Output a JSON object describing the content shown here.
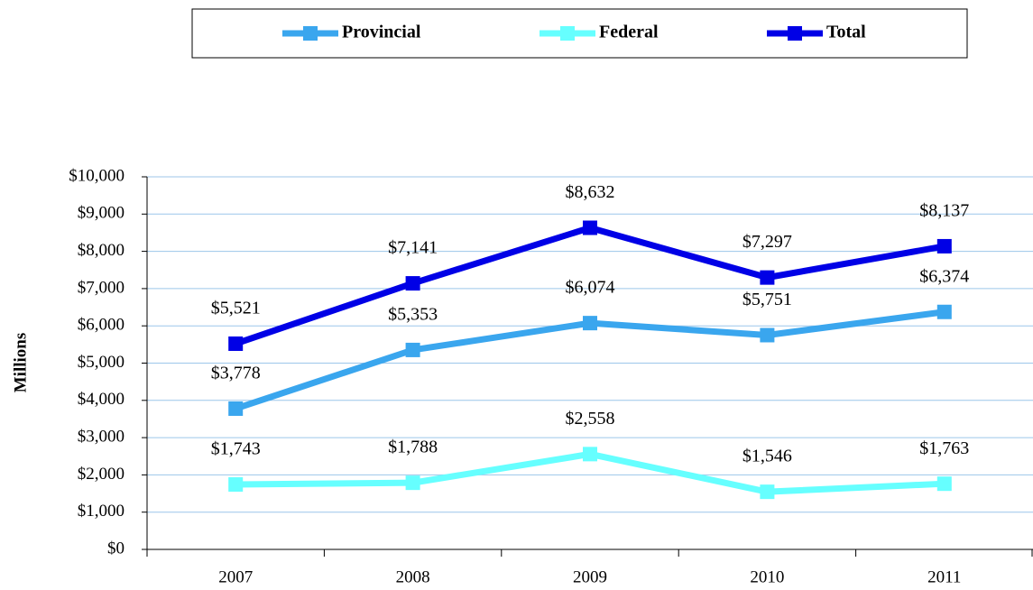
{
  "chart_data": {
    "type": "line",
    "y_label": "Millions",
    "categories": [
      "2007",
      "2008",
      "2009",
      "2010",
      "2011"
    ],
    "series": [
      {
        "name": "Provincial",
        "color": "#3aa6ee",
        "values": [
          3778,
          5353,
          6074,
          5751,
          6374
        ],
        "value_labels": [
          "$3,778",
          "$5,353",
          "$6,074",
          "$5,751",
          "$6,374"
        ]
      },
      {
        "name": "Federal",
        "color": "#66ffff",
        "values": [
          1743,
          1788,
          2558,
          1546,
          1763
        ],
        "value_labels": [
          "$1,743",
          "$1,788",
          "$2,558",
          "$1,546",
          "$1,763"
        ]
      },
      {
        "name": "Total",
        "color": "#0000e6",
        "values": [
          5521,
          7141,
          8632,
          7297,
          8137
        ],
        "value_labels": [
          "$5,521",
          "$7,141",
          "$8,632",
          "$7,297",
          "$8,137"
        ]
      }
    ],
    "ylim": [
      0,
      10000
    ],
    "yticks": [
      {
        "value": 0,
        "label": "$0"
      },
      {
        "value": 1000,
        "label": "$1,000"
      },
      {
        "value": 2000,
        "label": "$2,000"
      },
      {
        "value": 3000,
        "label": "$3,000"
      },
      {
        "value": 4000,
        "label": "$4,000"
      },
      {
        "value": 5000,
        "label": "$5,000"
      },
      {
        "value": 6000,
        "label": "$6,000"
      },
      {
        "value": 7000,
        "label": "$7,000"
      },
      {
        "value": 8000,
        "label": "$8,000"
      },
      {
        "value": 9000,
        "label": "$9,000"
      },
      {
        "value": 10000,
        "label": "$10,000"
      }
    ],
    "grid": true,
    "legend": "top"
  }
}
